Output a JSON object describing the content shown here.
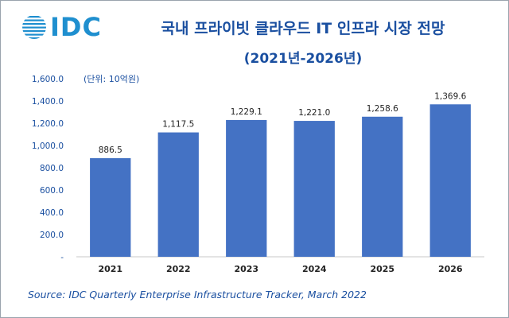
{
  "logo": {
    "text": "IDC",
    "icon": "globe-lines-icon",
    "color": "#1f8fcf"
  },
  "header": {
    "title": "국내 프라이빗 클라우드 IT 인프라 시장 전망",
    "subtitle": "(2021년-2026년)"
  },
  "unit_note": "(단위: 10억원)",
  "source": "Source: IDC Quarterly Enterprise Infrastructure Tracker, March 2022",
  "chart_data": {
    "type": "bar",
    "title": "국내 프라이빗 클라우드 IT 인프라 시장 전망",
    "categories": [
      "2021",
      "2022",
      "2023",
      "2024",
      "2025",
      "2026"
    ],
    "values": [
      886.5,
      1117.5,
      1229.1,
      1221.0,
      1258.6,
      1369.6
    ],
    "data_labels": [
      "886.5",
      "1,117.5",
      "1,229.1",
      "1,221.0",
      "1,258.6",
      "1,369.6"
    ],
    "yticks": [
      0,
      200,
      400,
      600,
      800,
      1000,
      1200,
      1400,
      1600
    ],
    "ytick_labels": [
      "-",
      "200.0",
      "400.0",
      "600.0",
      "800.0",
      "1,000.0",
      "1,200.0",
      "1,400.0",
      "1,600.0"
    ],
    "ylim": [
      0,
      1600
    ],
    "xlabel": "",
    "ylabel": "",
    "grid": false,
    "bar_color": "#4472c4"
  }
}
